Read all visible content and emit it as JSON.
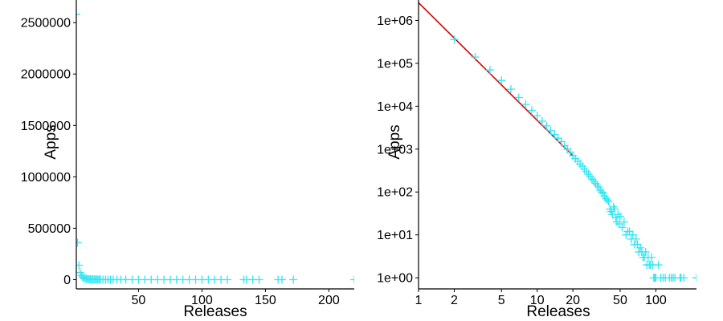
{
  "chart_data": [
    {
      "type": "scatter",
      "xlabel": "Releases",
      "ylabel": "Apps",
      "x_scale": "linear",
      "y_scale": "linear",
      "xlim": [
        1,
        220
      ],
      "ylim": [
        -90000,
        2720000
      ],
      "x_ticks": [
        50,
        100,
        150,
        200
      ],
      "x_tick_labels": [
        "50",
        "100",
        "150",
        "200"
      ],
      "y_ticks": [
        0,
        500000,
        1000000,
        1500000,
        2000000,
        2500000
      ],
      "y_tick_labels": [
        "0",
        "500000",
        "1000000",
        "1500000",
        "2000000",
        "2500000"
      ],
      "grid": false,
      "marker": "+",
      "marker_color": "#33e6f2",
      "series": [
        {
          "x": [
            1,
            2,
            3,
            4,
            5,
            6,
            7,
            8,
            9,
            10,
            11,
            12,
            13,
            14,
            15,
            16,
            17,
            18,
            19,
            20,
            22,
            24,
            26,
            28,
            30,
            33,
            36,
            40,
            45,
            50,
            55,
            60,
            65,
            70,
            75,
            80,
            85,
            90,
            95,
            100,
            105,
            110,
            115,
            120,
            133,
            135,
            140,
            145,
            160,
            163,
            172,
            220
          ],
          "y": [
            2580000,
            360000,
            140000,
            70000,
            40000,
            25000,
            16000,
            11000,
            8000,
            6000,
            4500,
            3500,
            2700,
            2200,
            1800,
            1500,
            1200,
            1000,
            850,
            700,
            520,
            400,
            300,
            230,
            180,
            130,
            95,
            60,
            40,
            27,
            18,
            12,
            8,
            6,
            4,
            3,
            3,
            2,
            2,
            1,
            1,
            1,
            1,
            1,
            1,
            1,
            1,
            1,
            1,
            1,
            1,
            1
          ]
        }
      ]
    },
    {
      "type": "scatter",
      "xlabel": "Releases",
      "ylabel": "Apps",
      "x_scale": "log",
      "y_scale": "log",
      "xlim": [
        1,
        220
      ],
      "ylim": [
        0.55,
        3000000
      ],
      "x_ticks": [
        1,
        2,
        5,
        10,
        20,
        50,
        100
      ],
      "x_tick_labels": [
        "1",
        "2",
        "5",
        "10",
        "20",
        "50",
        "100"
      ],
      "y_ticks": [
        1,
        10,
        100,
        1000,
        10000,
        100000,
        1000000
      ],
      "y_tick_labels": [
        "1e+00",
        "1e+01",
        "1e+02",
        "1e+03",
        "1e+04",
        "1e+05",
        "1e+06"
      ],
      "grid": false,
      "marker": "+",
      "marker_color": "#33e6f2",
      "series": [
        {
          "x": [
            2,
            3,
            4,
            5,
            6,
            7,
            8,
            9,
            10,
            11,
            12,
            13,
            14,
            15,
            16,
            17,
            18,
            19,
            20,
            21,
            22,
            23,
            24,
            25,
            26,
            27,
            28,
            29,
            30,
            31,
            32,
            33,
            34,
            35,
            36,
            37,
            38,
            39,
            40,
            41,
            42,
            43,
            44,
            45,
            46,
            47,
            48,
            49,
            50,
            52,
            54,
            56,
            58,
            60,
            62,
            64,
            66,
            68,
            70,
            72,
            74,
            76,
            78,
            80,
            82,
            84,
            86,
            88,
            90,
            92,
            94,
            96,
            98,
            100,
            105,
            110,
            115,
            120,
            130,
            135,
            140,
            145,
            160,
            163,
            172,
            220
          ],
          "y": [
            360000,
            140000,
            70000,
            40000,
            25000,
            16000,
            11000,
            8000,
            6000,
            4500,
            3500,
            2700,
            2200,
            1800,
            1500,
            1200,
            1000,
            850,
            700,
            600,
            520,
            450,
            400,
            340,
            300,
            260,
            230,
            200,
            180,
            160,
            145,
            130,
            110,
            100,
            95,
            80,
            70,
            65,
            60,
            40,
            35,
            30,
            45,
            40,
            25,
            20,
            30,
            18,
            27,
            15,
            20,
            10,
            12,
            12,
            8,
            10,
            6,
            8,
            6,
            4,
            5,
            4,
            3,
            3,
            4,
            2,
            3,
            2,
            2,
            3,
            2,
            1,
            1,
            1,
            2,
            1,
            1,
            1,
            1,
            1,
            1,
            1,
            1,
            1,
            1,
            1
          ]
        }
      ],
      "fit_line": {
        "color": "#dd0000",
        "x": [
          1,
          20
        ],
        "y": [
          2600000,
          700
        ]
      }
    }
  ]
}
